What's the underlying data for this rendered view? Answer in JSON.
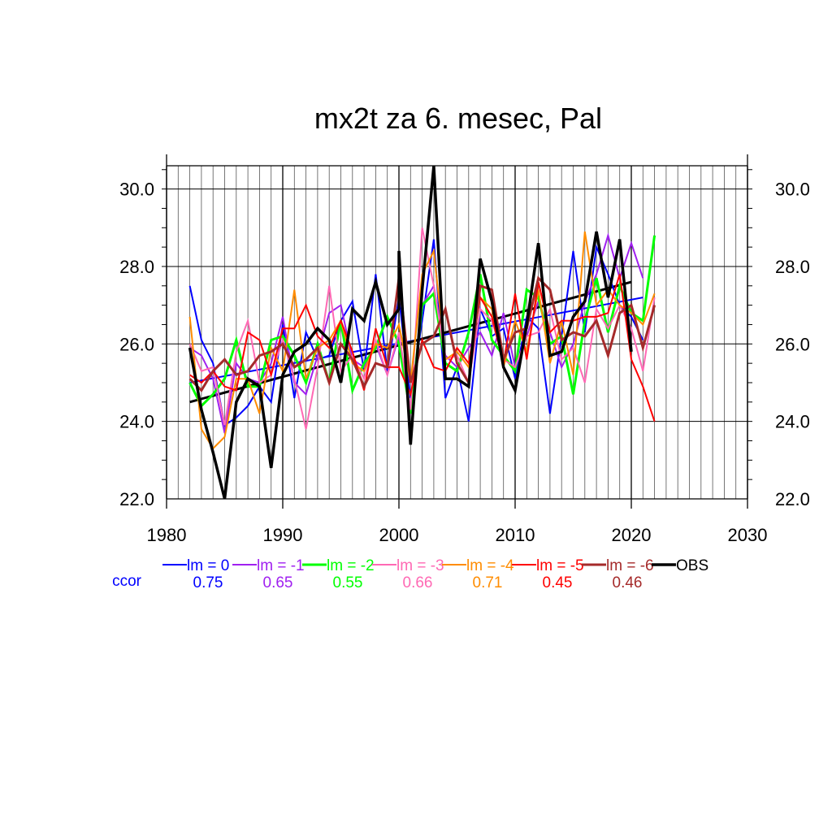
{
  "chart_data": {
    "type": "line",
    "title": "mx2t za 6. mesec, Pal",
    "xlabel": "",
    "ylabel": "",
    "xlim": [
      1980,
      2030
    ],
    "ylim": [
      22.0,
      30.6
    ],
    "x_ticks": [
      "1980",
      "1990",
      "2000",
      "2010",
      "2020",
      "2030"
    ],
    "y_ticks": [
      "22.0",
      "24.0",
      "26.0",
      "28.0",
      "30.0"
    ],
    "grid": true,
    "legend_position": "bottom",
    "corr_label": "ccor",
    "series": [
      {
        "name": "lm = 0",
        "color": "#0000ff",
        "corr": "0.75",
        "width": 2,
        "x": [
          1982,
          1983,
          1984,
          1985,
          1986,
          1987,
          1988,
          1989,
          1990,
          1991,
          1992,
          1993,
          1994,
          1995,
          1996,
          1997,
          1998,
          1999,
          2000,
          2001,
          2002,
          2003,
          2004,
          2005,
          2006,
          2007,
          2008,
          2009,
          2010,
          2011,
          2012,
          2013,
          2014,
          2015,
          2016,
          2017,
          2018,
          2019,
          2020,
          2021
        ],
        "y": [
          27.5,
          26.1,
          25.5,
          23.9,
          24.1,
          24.4,
          24.9,
          24.5,
          26.5,
          24.6,
          26.3,
          25.6,
          25.7,
          26.6,
          27.1,
          25.3,
          27.8,
          25.3,
          27.2,
          24.6,
          26.6,
          28.7,
          24.6,
          25.4,
          24.0,
          26.9,
          26.2,
          26.4,
          25.1,
          26.7,
          26.4,
          24.2,
          26.2,
          28.4,
          26.3,
          28.5,
          27.8,
          27.0,
          26.7,
          26.1
        ]
      },
      {
        "name": "lm = -1",
        "color": "#a020f0",
        "corr": "0.65",
        "width": 2,
        "x": [
          1982,
          1983,
          1984,
          1985,
          1986,
          1987,
          1988,
          1989,
          1990,
          1991,
          1992,
          1993,
          1994,
          1995,
          1996,
          1997,
          1998,
          1999,
          2000,
          2001,
          2002,
          2003,
          2004,
          2005,
          2006,
          2007,
          2008,
          2009,
          2010,
          2011,
          2012,
          2013,
          2014,
          2015,
          2016,
          2017,
          2018,
          2019,
          2020,
          2021
        ],
        "y": [
          25.9,
          25.7,
          25.1,
          23.7,
          25.5,
          25.1,
          25.0,
          25.5,
          26.7,
          25.0,
          24.7,
          25.7,
          26.8,
          27.0,
          25.6,
          25.4,
          26.0,
          25.2,
          26.2,
          24.3,
          27.0,
          27.5,
          25.7,
          25.4,
          25.9,
          26.3,
          25.7,
          26.8,
          25.4,
          26.2,
          27.1,
          26.3,
          25.4,
          26.0,
          27.1,
          27.8,
          28.8,
          27.7,
          28.6,
          27.7
        ]
      },
      {
        "name": "lm = -2",
        "color": "#00ff00",
        "corr": "0.55",
        "width": 3,
        "x": [
          1982,
          1983,
          1984,
          1985,
          1986,
          1987,
          1988,
          1989,
          1990,
          1991,
          1992,
          1993,
          1994,
          1995,
          1996,
          1997,
          1998,
          1999,
          2000,
          2001,
          2002,
          2003,
          2004,
          2005,
          2006,
          2007,
          2008,
          2009,
          2010,
          2011,
          2012,
          2013,
          2014,
          2015,
          2016,
          2017,
          2018,
          2019,
          2020,
          2021,
          2022
        ],
        "y": [
          25.0,
          24.4,
          24.7,
          25.1,
          26.1,
          24.9,
          24.9,
          26.1,
          26.2,
          25.7,
          25.0,
          26.0,
          25.0,
          26.6,
          24.8,
          25.5,
          25.9,
          26.7,
          26.0,
          24.2,
          27.0,
          27.3,
          25.5,
          25.3,
          26.3,
          27.8,
          26.1,
          25.7,
          25.3,
          27.4,
          27.2,
          26.0,
          26.2,
          24.7,
          26.6,
          27.7,
          26.3,
          27.5,
          26.8,
          26.6,
          28.8
        ]
      },
      {
        "name": "lm = -3",
        "color": "#ff69b4",
        "corr": "0.66",
        "width": 2,
        "x": [
          1982,
          1983,
          1984,
          1985,
          1986,
          1987,
          1988,
          1989,
          1990,
          1991,
          1992,
          1993,
          1994,
          1995,
          1996,
          1997,
          1998,
          1999,
          2000,
          2001,
          2002,
          2003,
          2004,
          2005,
          2006,
          2007,
          2008,
          2009,
          2010,
          2011,
          2012,
          2013,
          2014,
          2015,
          2016,
          2017,
          2018,
          2019,
          2020,
          2021,
          2022
        ],
        "y": [
          26.0,
          25.3,
          25.4,
          23.9,
          25.8,
          26.6,
          25.0,
          25.2,
          26.1,
          25.1,
          23.8,
          25.4,
          27.5,
          25.3,
          25.7,
          25.1,
          26.1,
          25.2,
          26.3,
          24.3,
          29.0,
          27.5,
          25.6,
          25.7,
          25.0,
          26.9,
          26.6,
          25.6,
          25.4,
          26.2,
          26.3,
          26.9,
          25.6,
          25.9,
          25.0,
          26.9,
          26.4,
          27.0,
          26.4,
          25.3,
          27.2
        ]
      },
      {
        "name": "lm = -4",
        "color": "#ff8c00",
        "corr": "0.71",
        "width": 2,
        "x": [
          1982,
          1983,
          1984,
          1985,
          1986,
          1987,
          1988,
          1989,
          1990,
          1991,
          1992,
          1993,
          1994,
          1995,
          1996,
          1997,
          1998,
          1999,
          2000,
          2001,
          2002,
          2003,
          2004,
          2005,
          2006,
          2007,
          2008,
          2009,
          2010,
          2011,
          2012,
          2013,
          2014,
          2015,
          2016,
          2017,
          2018,
          2019,
          2020,
          2021,
          2022
        ],
        "y": [
          26.7,
          23.8,
          23.3,
          23.6,
          25.1,
          25.1,
          24.2,
          25.9,
          25.3,
          27.4,
          25.1,
          25.9,
          26.1,
          26.6,
          25.5,
          25.3,
          26.0,
          25.9,
          26.5,
          25.0,
          27.8,
          28.4,
          25.6,
          25.8,
          25.4,
          27.2,
          26.9,
          25.4,
          26.6,
          25.8,
          27.4,
          25.5,
          26.6,
          25.2,
          28.9,
          27.0,
          27.4,
          27.0,
          26.8,
          26.5,
          27.3
        ]
      },
      {
        "name": "lm = -5",
        "color": "#ff0000",
        "corr": "0.45",
        "width": 2,
        "x": [
          1982,
          1983,
          1984,
          1985,
          1986,
          1987,
          1988,
          1989,
          1990,
          1991,
          1992,
          1993,
          1994,
          1995,
          1996,
          1997,
          1998,
          1999,
          2000,
          2001,
          2002,
          2003,
          2004,
          2005,
          2006,
          2007,
          2008,
          2009,
          2010,
          2011,
          2012,
          2013,
          2014,
          2015,
          2016,
          2017,
          2018,
          2019,
          2020,
          2021,
          2022
        ],
        "y": [
          25.2,
          25.0,
          25.3,
          24.9,
          24.8,
          26.3,
          26.1,
          25.2,
          26.4,
          26.4,
          27.0,
          26.2,
          25.9,
          26.6,
          25.8,
          24.8,
          26.4,
          25.4,
          25.4,
          24.7,
          26.1,
          25.4,
          25.3,
          25.9,
          25.5,
          27.2,
          26.7,
          25.5,
          27.3,
          25.6,
          27.6,
          26.3,
          26.6,
          26.6,
          26.7,
          26.7,
          26.8,
          27.8,
          25.6,
          24.9,
          24.0
        ]
      },
      {
        "name": "lm = -6",
        "color": "#a52a2a",
        "corr": "0.46",
        "width": 3,
        "x": [
          1982,
          1983,
          1984,
          1985,
          1986,
          1987,
          1988,
          1989,
          1990,
          1991,
          1992,
          1993,
          1994,
          1995,
          1996,
          1997,
          1998,
          1999,
          2000,
          2001,
          2002,
          2003,
          2004,
          2005,
          2006,
          2007,
          2008,
          2009,
          2010,
          2011,
          2012,
          2013,
          2014,
          2015,
          2016,
          2017,
          2018,
          2019,
          2020,
          2021,
          2022
        ],
        "y": [
          25.1,
          24.8,
          25.3,
          25.6,
          25.2,
          25.3,
          25.7,
          25.8,
          26.0,
          25.4,
          25.6,
          25.9,
          25.0,
          26.0,
          25.6,
          24.9,
          25.5,
          25.4,
          27.7,
          25.0,
          26.0,
          26.2,
          26.9,
          25.5,
          25.0,
          27.5,
          27.4,
          25.6,
          26.3,
          26.4,
          27.7,
          27.4,
          26.1,
          26.3,
          26.2,
          26.6,
          25.7,
          26.8,
          27.0,
          25.9,
          27.0
        ]
      },
      {
        "name": "OBS",
        "color": "#000000",
        "corr": "",
        "width": 3.5,
        "x": [
          1982,
          1983,
          1984,
          1985,
          1986,
          1987,
          1988,
          1989,
          1990,
          1991,
          1992,
          1993,
          1994,
          1995,
          1996,
          1997,
          1998,
          1999,
          2000,
          2000.001,
          2001,
          2002,
          2003,
          2004,
          2005,
          2006,
          2007,
          2008,
          2009,
          2010,
          2011,
          2012,
          2013,
          2014,
          2015,
          2016,
          2017,
          2018,
          2019,
          2020
        ],
        "y": [
          25.9,
          24.3,
          23.2,
          22.0,
          24.5,
          25.1,
          24.9,
          22.8,
          25.2,
          25.8,
          26.0,
          26.4,
          26.1,
          25.0,
          26.9,
          26.6,
          27.6,
          26.5,
          26.9,
          28.4,
          23.4,
          27.4,
          30.6,
          25.1,
          25.1,
          24.9,
          28.2,
          27.1,
          25.4,
          24.8,
          26.5,
          28.6,
          25.7,
          25.8,
          26.7,
          27.1,
          28.9,
          27.2,
          28.7,
          25.8
        ]
      }
    ],
    "trend_lines": [
      {
        "name": "lm = 0 trend",
        "color": "#0000ff",
        "width": 2,
        "x": [
          1982,
          2021
        ],
        "y": [
          25.0,
          27.2
        ]
      },
      {
        "name": "OBS trend",
        "color": "#000000",
        "width": 3,
        "x": [
          1982,
          2020
        ],
        "y": [
          24.5,
          27.6
        ]
      }
    ]
  }
}
